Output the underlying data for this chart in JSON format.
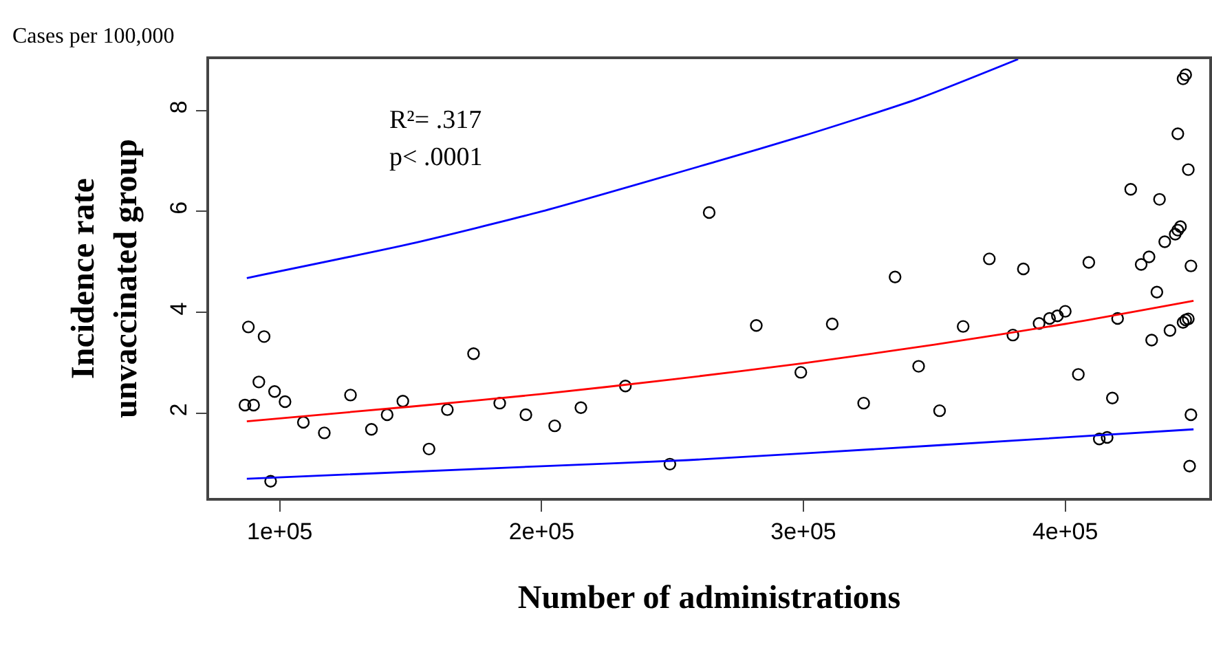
{
  "chart_data": {
    "type": "scatter",
    "xlabel": "Number of administrations",
    "ylabel": "Incidence rate\nunvaccinated group",
    "annotations": [
      "Cases per 100,000",
      "R²= .317",
      "p< .0001"
    ],
    "xlim": [
      73000,
      455000
    ],
    "ylim": [
      0.32,
      9.02
    ],
    "xticks": [
      {
        "value": 100000,
        "label": "1e+05"
      },
      {
        "value": 200000,
        "label": "2e+05"
      },
      {
        "value": 300000,
        "label": "3e+05"
      },
      {
        "value": 400000,
        "label": "4e+05"
      }
    ],
    "yticks": [
      2,
      4,
      6,
      8
    ],
    "grid": false,
    "legend": false,
    "series": [
      {
        "marker": "circle",
        "color": "#000000",
        "x": [
          86700,
          90000,
          88000,
          94000,
          92000,
          98000,
          102000,
          96500,
          109000,
          117000,
          127000,
          135000,
          141000,
          147000,
          157000,
          164000,
          174000,
          184000,
          194000,
          205000,
          215000,
          232000,
          249000,
          264000,
          282000,
          299000,
          311000,
          323000,
          335000,
          344000,
          352000,
          361000,
          371000,
          380000,
          384000,
          390000,
          394000,
          397000,
          400000,
          405000,
          409000,
          413000,
          416000,
          418000,
          420000,
          425000,
          429000,
          432000,
          433000,
          435000,
          436000,
          438000,
          440000,
          442000,
          443000,
          444000,
          443000,
          445000,
          446000,
          447000,
          445000,
          446000,
          447000,
          448000,
          448000,
          447500
        ],
        "values": [
          2.16,
          2.16,
          3.71,
          3.52,
          2.62,
          2.43,
          2.23,
          0.65,
          1.82,
          1.61,
          2.36,
          1.68,
          1.97,
          2.24,
          1.29,
          2.07,
          3.18,
          2.2,
          1.97,
          1.75,
          2.11,
          2.54,
          0.99,
          5.98,
          3.74,
          2.81,
          3.77,
          2.2,
          4.7,
          2.93,
          2.05,
          3.72,
          5.06,
          3.55,
          4.86,
          3.78,
          3.88,
          3.93,
          4.02,
          2.77,
          4.99,
          1.49,
          1.52,
          2.3,
          3.88,
          6.44,
          4.95,
          5.1,
          3.45,
          4.4,
          6.24,
          5.4,
          3.64,
          5.55,
          5.63,
          5.7,
          7.54,
          3.8,
          3.85,
          3.87,
          8.63,
          8.71,
          6.83,
          4.92,
          1.97,
          0.95
        ]
      },
      {
        "type": "line",
        "color": "#ff0000",
        "x": [
          87400,
          150000,
          200000,
          250000,
          300000,
          350000,
          400000,
          449000
        ],
        "values": [
          1.84,
          2.13,
          2.38,
          2.67,
          2.99,
          3.36,
          3.77,
          4.23
        ]
      },
      {
        "type": "line",
        "color": "#0000ff",
        "x": [
          87400,
          150000,
          200000,
          266000,
          300000,
          343000,
          382000
        ],
        "values": [
          4.68,
          5.36,
          6.0,
          6.98,
          7.5,
          8.22,
          9.02
        ]
      },
      {
        "type": "line",
        "color": "#0000ff",
        "x": [
          87400,
          200000,
          256000,
          350000,
          449000
        ],
        "values": [
          0.7,
          0.95,
          1.07,
          1.36,
          1.68
        ]
      }
    ]
  }
}
